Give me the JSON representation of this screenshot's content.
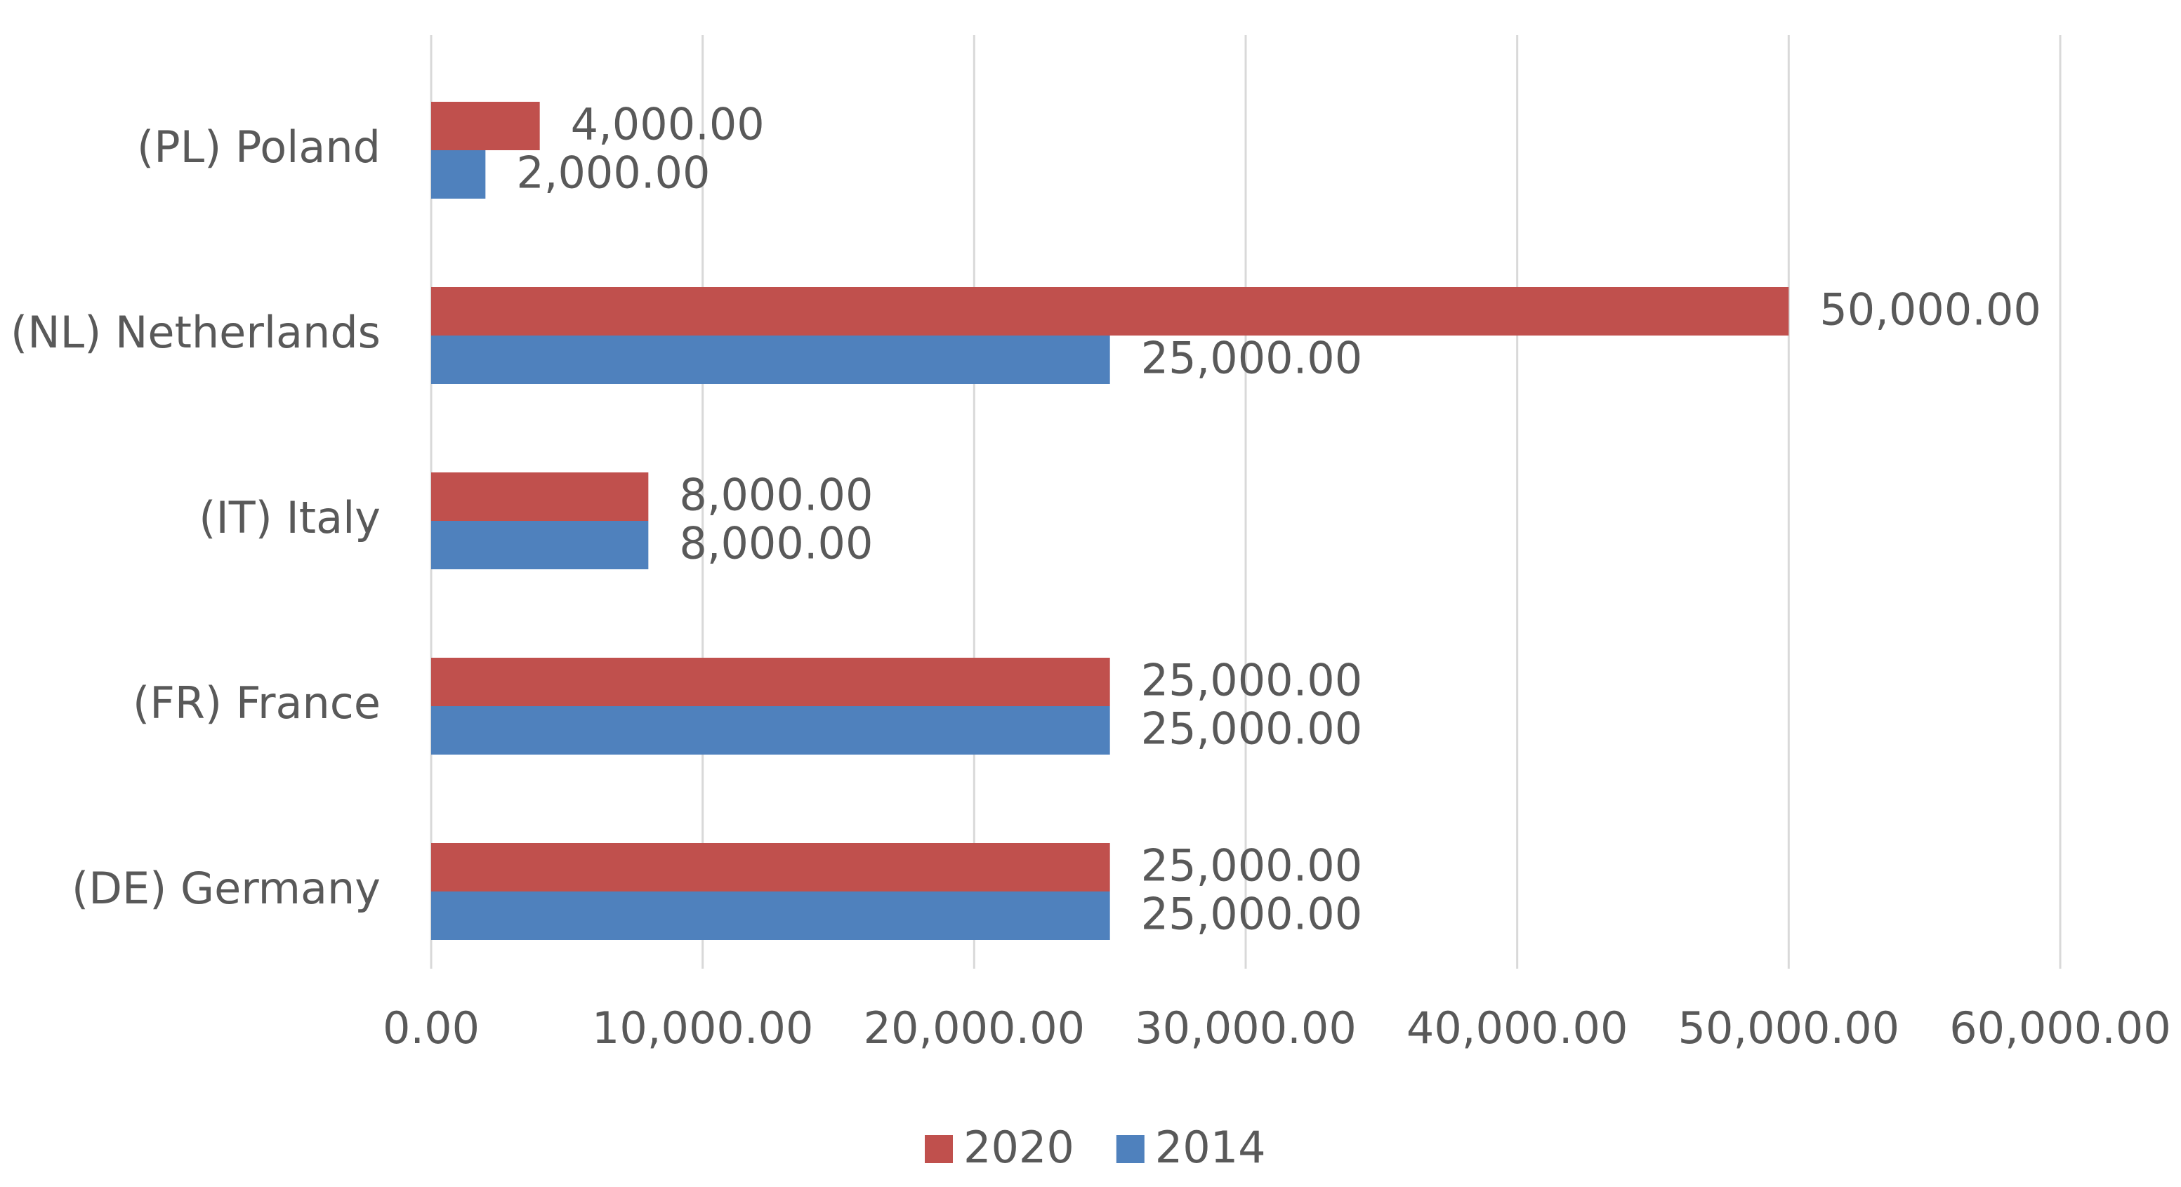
{
  "chart_data": {
    "type": "hbar",
    "categories": [
      "(PL) Poland",
      "(NL) Netherlands",
      "(IT) Italy",
      "(FR) France",
      "(DE) Germany"
    ],
    "series": [
      {
        "name": "2020",
        "color": "#c0504d",
        "values": [
          4000,
          50000,
          8000,
          25000,
          25000
        ],
        "value_labels": [
          "4,000.00",
          "50,000.00",
          "8,000.00",
          "25,000.00",
          "25,000.00"
        ]
      },
      {
        "name": "2014",
        "color": "#4f81bd",
        "values": [
          2000,
          25000,
          8000,
          25000,
          25000
        ],
        "value_labels": [
          "2,000.00",
          "25,000.00",
          "8,000.00",
          "25,000.00",
          "25,000.00"
        ]
      }
    ],
    "xlim": [
      0,
      60000
    ],
    "xticks": [
      {
        "value": 0,
        "label": "0.00"
      },
      {
        "value": 10000,
        "label": "10,000.00"
      },
      {
        "value": 20000,
        "label": "20,000.00"
      },
      {
        "value": 30000,
        "label": "30,000.00"
      },
      {
        "value": 40000,
        "label": "40,000.00"
      },
      {
        "value": 50000,
        "label": "50,000.00"
      },
      {
        "value": 60000,
        "label": "60,000.00"
      }
    ],
    "grid": true,
    "legend": "bottom"
  }
}
